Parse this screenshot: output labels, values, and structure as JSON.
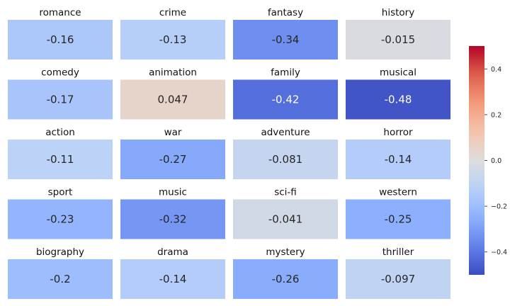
{
  "chart_data": {
    "type": "heatmap",
    "layout": "small-multiples-grid",
    "colormap": "coolwarm",
    "value_range": [
      -0.5,
      0.5
    ],
    "panels": [
      {
        "genre": "romance",
        "value": -0.16,
        "label": "-0.16"
      },
      {
        "genre": "crime",
        "value": -0.13,
        "label": "-0.13"
      },
      {
        "genre": "fantasy",
        "value": -0.34,
        "label": "-0.34"
      },
      {
        "genre": "history",
        "value": -0.015,
        "label": "-0.015"
      },
      {
        "genre": "comedy",
        "value": -0.17,
        "label": "-0.17"
      },
      {
        "genre": "animation",
        "value": 0.047,
        "label": "0.047"
      },
      {
        "genre": "family",
        "value": -0.42,
        "label": "-0.42"
      },
      {
        "genre": "musical",
        "value": -0.48,
        "label": "-0.48"
      },
      {
        "genre": "action",
        "value": -0.11,
        "label": "-0.11"
      },
      {
        "genre": "war",
        "value": -0.27,
        "label": "-0.27"
      },
      {
        "genre": "adventure",
        "value": -0.081,
        "label": "-0.081"
      },
      {
        "genre": "horror",
        "value": -0.14,
        "label": "-0.14"
      },
      {
        "genre": "sport",
        "value": -0.23,
        "label": "-0.23"
      },
      {
        "genre": "music",
        "value": -0.32,
        "label": "-0.32"
      },
      {
        "genre": "sci-fi",
        "value": -0.041,
        "label": "-0.041"
      },
      {
        "genre": "western",
        "value": -0.25,
        "label": "-0.25"
      },
      {
        "genre": "biography",
        "value": -0.2,
        "label": "-0.2"
      },
      {
        "genre": "drama",
        "value": -0.14,
        "label": "-0.14"
      },
      {
        "genre": "mystery",
        "value": -0.26,
        "label": "-0.26"
      },
      {
        "genre": "thriller",
        "value": -0.097,
        "label": "-0.097"
      }
    ],
    "colorbar": {
      "range": [
        -0.5,
        0.5
      ],
      "ticks": [
        {
          "value": 0.4,
          "label": "0.4"
        },
        {
          "value": 0.2,
          "label": "0.2"
        },
        {
          "value": 0.0,
          "label": "0.0"
        },
        {
          "value": -0.2,
          "label": "−0.2"
        },
        {
          "value": -0.4,
          "label": "−0.4"
        }
      ]
    },
    "title": "",
    "xlabel": "",
    "ylabel": ""
  }
}
